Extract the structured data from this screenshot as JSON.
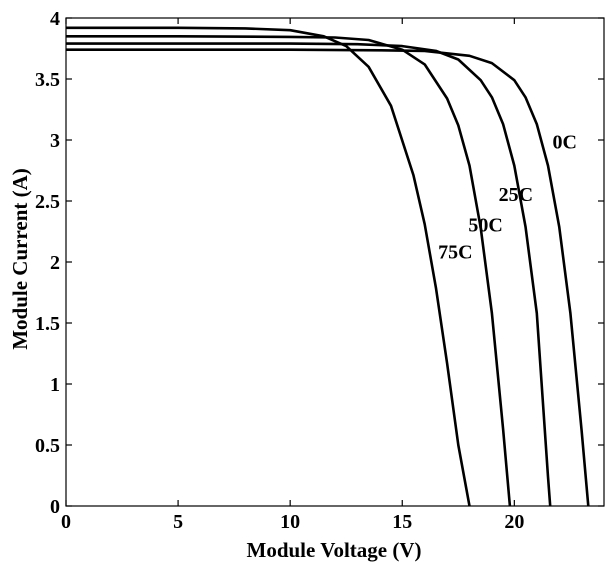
{
  "chart_data": {
    "type": "line",
    "title": "",
    "xlabel": "Module Voltage (V)",
    "ylabel": "Module Current (A)",
    "xlim": [
      0,
      24
    ],
    "ylim": [
      0,
      4
    ],
    "x_ticks": [
      0,
      5,
      10,
      15,
      20
    ],
    "x_tick_labels": [
      "0",
      "5",
      "10",
      "15",
      "20"
    ],
    "y_ticks": [
      0,
      0.5,
      1,
      1.5,
      2,
      2.5,
      3,
      3.5,
      4
    ],
    "y_tick_labels": [
      "0",
      "0.5",
      "1",
      "1.5",
      "2",
      "2.5",
      "3",
      "3.5",
      "4"
    ],
    "grid": false,
    "legend": "none",
    "series": [
      {
        "name": "0C",
        "x": [
          0,
          5,
          10,
          14,
          16,
          18,
          19,
          20,
          20.5,
          21,
          21.5,
          22,
          22.5,
          23,
          23.3
        ],
        "y": [
          3.74,
          3.74,
          3.74,
          3.735,
          3.73,
          3.69,
          3.63,
          3.49,
          3.35,
          3.13,
          2.79,
          2.29,
          1.58,
          0.62,
          0
        ]
      },
      {
        "name": "25C",
        "x": [
          0,
          5,
          10,
          13,
          15,
          16.5,
          17.5,
          18.5,
          19,
          19.5,
          20,
          20.5,
          21,
          21.5,
          21.6
        ],
        "y": [
          3.79,
          3.79,
          3.79,
          3.785,
          3.77,
          3.73,
          3.66,
          3.49,
          3.35,
          3.13,
          2.79,
          2.29,
          1.58,
          0.24,
          0
        ]
      },
      {
        "name": "50C",
        "x": [
          0,
          5,
          10,
          12,
          13.5,
          15,
          16,
          17,
          17.5,
          18,
          18.5,
          19,
          19.5,
          19.8
        ],
        "y": [
          3.85,
          3.85,
          3.845,
          3.84,
          3.82,
          3.74,
          3.62,
          3.34,
          3.12,
          2.79,
          2.28,
          1.58,
          0.63,
          0
        ]
      },
      {
        "name": "75C",
        "x": [
          0,
          5,
          8,
          10,
          11.5,
          12.5,
          13.5,
          14.5,
          15.5,
          16,
          16.5,
          17,
          17.5,
          18
        ],
        "y": [
          3.92,
          3.92,
          3.915,
          3.9,
          3.85,
          3.77,
          3.6,
          3.28,
          2.71,
          2.31,
          1.79,
          1.17,
          0.5,
          0
        ]
      }
    ],
    "annotations": [
      {
        "text": "0C",
        "x": 21.7,
        "y": 2.93
      },
      {
        "text": "25C",
        "x": 19.3,
        "y": 2.5
      },
      {
        "text": "50C",
        "x": 17.95,
        "y": 2.25
      },
      {
        "text": "75C",
        "x": 16.6,
        "y": 2.03
      }
    ]
  }
}
